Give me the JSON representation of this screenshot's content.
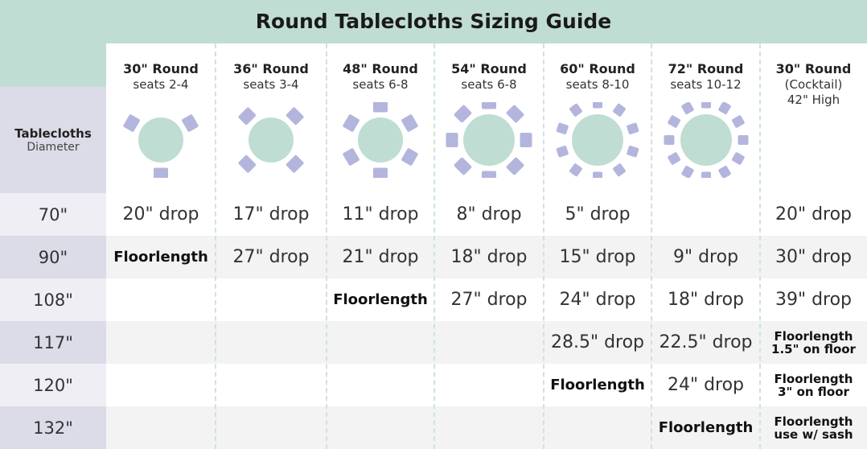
{
  "title": "Round Tablecloths Sizing Guide",
  "colors": {
    "header": "#c0ddd3",
    "table": "#c0ddd3",
    "chair": "#b4b5dd",
    "label_bg": "#dcdbe8"
  },
  "label_header": {
    "bold": "Tablecloths",
    "sub": "Diameter"
  },
  "columns": [
    {
      "name": "30\" Round",
      "sub": "seats 2-4",
      "chairs": 3
    },
    {
      "name": "36\" Round",
      "sub": "seats 3-4",
      "chairs": 4
    },
    {
      "name": "48\" Round",
      "sub": "seats 6-8",
      "chairs": 6
    },
    {
      "name": "54\" Round",
      "sub": "seats 6-8",
      "chairs": 8
    },
    {
      "name": "60\" Round",
      "sub": "seats 8-10",
      "chairs": 10
    },
    {
      "name": "72\" Round",
      "sub": "seats 10-12",
      "chairs": 12
    },
    {
      "name": "30\" Round",
      "sub": "(Cocktail)",
      "sub2": "42\" High",
      "chairs": 0
    }
  ],
  "rows": [
    {
      "diameter": "70\"",
      "cells": [
        "20\" drop",
        "17\" drop",
        "11\" drop",
        "8\" drop",
        "5\" drop",
        "",
        [
          "20\" drop"
        ]
      ]
    },
    {
      "diameter": "90\"",
      "cells": [
        "Floorlength",
        "27\" drop",
        "21\" drop",
        "18\" drop",
        "15\" drop",
        "9\" drop",
        [
          "30\" drop"
        ]
      ]
    },
    {
      "diameter": "108\"",
      "cells": [
        "",
        "",
        "Floorlength",
        "27\" drop",
        "24\" drop",
        "18\" drop",
        [
          "39\" drop"
        ]
      ]
    },
    {
      "diameter": "117\"",
      "cells": [
        "",
        "",
        "",
        "",
        "28.5\" drop",
        "22.5\" drop",
        [
          "Floorlength",
          "1.5\" on floor"
        ]
      ]
    },
    {
      "diameter": "120\"",
      "cells": [
        "",
        "",
        "",
        "",
        "Floorlength",
        "24\" drop",
        [
          "Floorlength",
          "3\" on floor"
        ]
      ]
    },
    {
      "diameter": "132\"",
      "cells": [
        "",
        "",
        "",
        "",
        "",
        "Floorlength",
        [
          "Floorlength",
          "use w/ sash"
        ]
      ]
    }
  ]
}
